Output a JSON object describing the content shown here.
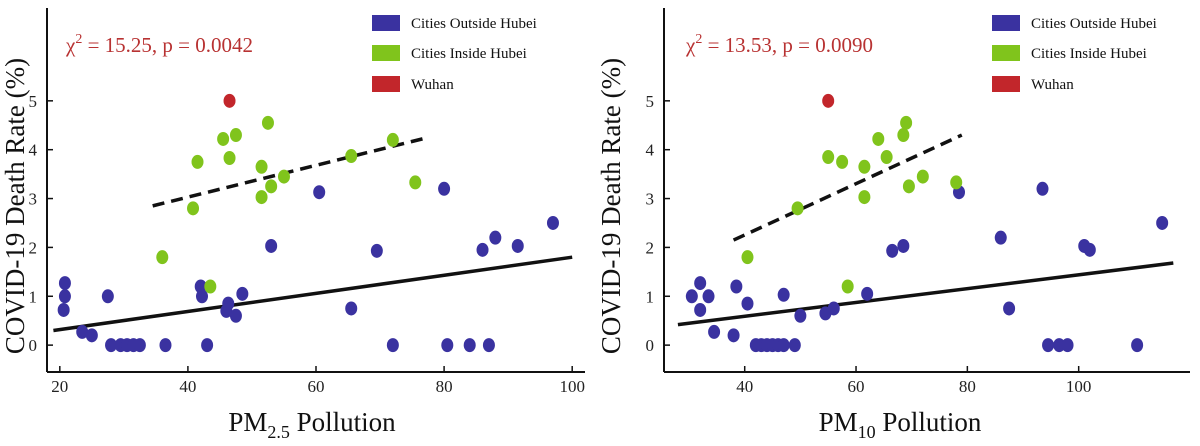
{
  "colors": {
    "outside": "#3a32a0",
    "inside": "#80c41c",
    "wuhan": "#c2262b",
    "stat": "#b83232",
    "line": "#111111"
  },
  "chart_data": [
    {
      "type": "scatter",
      "xlabel": {
        "base": "PM",
        "sub": "2.5",
        "rest": " Pollution"
      },
      "ylabel": "COVID-19 Death Rate (%)",
      "stat": {
        "chi_symbol": "χ",
        "exp": "2",
        "rest": " = 15.25, p = 0.0042"
      },
      "xlim": [
        18,
        102
      ],
      "ylim": [
        -0.55,
        6.9
      ],
      "xticks": [
        20,
        40,
        60,
        80,
        100
      ],
      "yticks": [
        0,
        1,
        2,
        3,
        4,
        5
      ],
      "legend": [
        "Cities Outside Hubei",
        "Cities Inside Hubei",
        "Wuhan"
      ],
      "legend_position": "top-right",
      "series": [
        {
          "name": "Cities Outside Hubei",
          "color_key": "outside",
          "points": [
            [
              20.8,
              1.27
            ],
            [
              20.8,
              1.0
            ],
            [
              20.6,
              0.72
            ],
            [
              23.5,
              0.27
            ],
            [
              25,
              0.2
            ],
            [
              27.5,
              1.0
            ],
            [
              28,
              0
            ],
            [
              29.5,
              0
            ],
            [
              30.5,
              0
            ],
            [
              31.5,
              0
            ],
            [
              32.5,
              0
            ],
            [
              36.5,
              0
            ],
            [
              42,
              1.2
            ],
            [
              42.2,
              1.0
            ],
            [
              43,
              0
            ],
            [
              46,
              0.7
            ],
            [
              46.3,
              0.85
            ],
            [
              47.5,
              0.6
            ],
            [
              48.5,
              1.05
            ],
            [
              53,
              2.03
            ],
            [
              60.5,
              3.13
            ],
            [
              65.5,
              0.75
            ],
            [
              69.5,
              1.93
            ],
            [
              72,
              0
            ],
            [
              80,
              3.2
            ],
            [
              80.5,
              0
            ],
            [
              84,
              0
            ],
            [
              86,
              1.95
            ],
            [
              87,
              0
            ],
            [
              88,
              2.2
            ],
            [
              91.5,
              2.03
            ],
            [
              97,
              2.5
            ]
          ]
        },
        {
          "name": "Cities Inside Hubei",
          "color_key": "inside",
          "points": [
            [
              36,
              1.8
            ],
            [
              40.8,
              2.8
            ],
            [
              41.5,
              3.75
            ],
            [
              43.5,
              1.2
            ],
            [
              45.5,
              4.22
            ],
            [
              46.5,
              3.83
            ],
            [
              47.5,
              4.3
            ],
            [
              51.5,
              3.03
            ],
            [
              51.5,
              3.65
            ],
            [
              52.5,
              4.55
            ],
            [
              53,
              3.25
            ],
            [
              55,
              3.45
            ],
            [
              65.5,
              3.87
            ],
            [
              72,
              4.2
            ],
            [
              75.5,
              3.33
            ]
          ]
        },
        {
          "name": "Wuhan",
          "color_key": "wuhan",
          "points": [
            [
              46.5,
              5.0
            ]
          ]
        }
      ],
      "fits": [
        {
          "style": "dashed",
          "from": [
            34.5,
            2.85
          ],
          "to": [
            77.5,
            4.25
          ]
        },
        {
          "style": "solid",
          "from": [
            19,
            0.3
          ],
          "to": [
            100,
            1.8
          ]
        }
      ]
    },
    {
      "type": "scatter",
      "xlabel": {
        "base": "PM",
        "sub": "10",
        "rest": " Pollution"
      },
      "ylabel": "COVID-19 Death Rate (%)",
      "stat": {
        "chi_symbol": "χ",
        "exp": "2",
        "rest": " = 13.53, p = 0.0090"
      },
      "xlim": [
        25.5,
        120
      ],
      "ylim": [
        -0.55,
        6.9
      ],
      "xticks": [
        40,
        60,
        80,
        100
      ],
      "yticks": [
        0,
        1,
        2,
        3,
        4,
        5
      ],
      "legend": [
        "Cities Outside Hubei",
        "Cities Inside Hubei",
        "Wuhan"
      ],
      "legend_position": "top-right",
      "series": [
        {
          "name": "Cities Outside Hubei",
          "color_key": "outside",
          "points": [
            [
              30.5,
              1.0
            ],
            [
              32,
              1.27
            ],
            [
              32,
              0.72
            ],
            [
              33.5,
              1.0
            ],
            [
              34.5,
              0.27
            ],
            [
              38,
              0.2
            ],
            [
              38.5,
              1.2
            ],
            [
              40.5,
              0.85
            ],
            [
              42,
              0
            ],
            [
              43,
              0
            ],
            [
              44,
              0
            ],
            [
              45,
              0
            ],
            [
              46,
              0
            ],
            [
              47,
              1.03
            ],
            [
              47,
              0
            ],
            [
              49,
              0
            ],
            [
              50,
              0.6
            ],
            [
              54.5,
              0.65
            ],
            [
              56,
              0.75
            ],
            [
              62,
              1.05
            ],
            [
              66.5,
              1.93
            ],
            [
              68.5,
              2.03
            ],
            [
              78.5,
              3.13
            ],
            [
              86,
              2.2
            ],
            [
              87.5,
              0.75
            ],
            [
              93.5,
              3.2
            ],
            [
              94.5,
              0
            ],
            [
              96.5,
              0
            ],
            [
              98,
              0
            ],
            [
              101,
              2.03
            ],
            [
              102,
              1.95
            ],
            [
              110.5,
              0
            ],
            [
              115,
              2.5
            ]
          ]
        },
        {
          "name": "Cities Inside Hubei",
          "color_key": "inside",
          "points": [
            [
              40.5,
              1.8
            ],
            [
              49.5,
              2.8
            ],
            [
              55,
              3.85
            ],
            [
              57.5,
              3.75
            ],
            [
              58.5,
              1.2
            ],
            [
              61.5,
              3.03
            ],
            [
              61.5,
              3.65
            ],
            [
              64,
              4.22
            ],
            [
              65.5,
              3.85
            ],
            [
              68.5,
              4.3
            ],
            [
              69,
              4.55
            ],
            [
              69.5,
              3.25
            ],
            [
              72,
              3.45
            ],
            [
              78,
              3.33
            ]
          ]
        },
        {
          "name": "Wuhan",
          "color_key": "wuhan",
          "points": [
            [
              55,
              5.0
            ]
          ]
        }
      ],
      "fits": [
        {
          "style": "dashed",
          "from": [
            38,
            2.15
          ],
          "to": [
            79,
            4.3
          ]
        },
        {
          "style": "solid",
          "from": [
            28,
            0.42
          ],
          "to": [
            117,
            1.68
          ]
        }
      ]
    }
  ]
}
